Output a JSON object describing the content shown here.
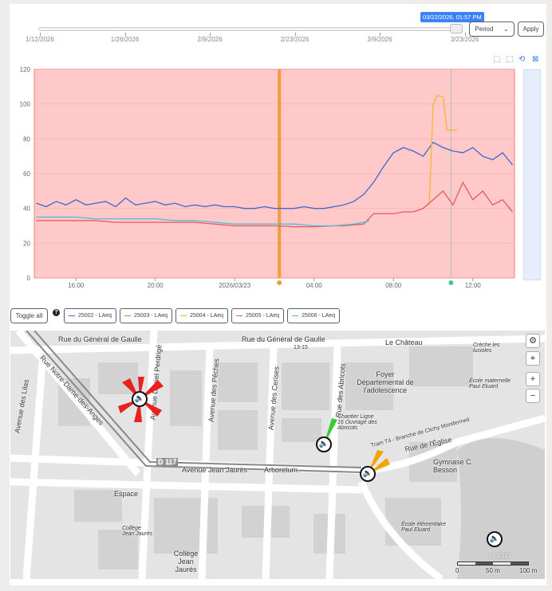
{
  "timeline": {
    "labels": [
      "1/12/2026",
      "1/26/2026",
      "2/9/2026",
      "2/23/2026",
      "3/9/2026",
      "3/23/2026"
    ],
    "tooltip": "03/22/2026, 01:57 PM"
  },
  "controls": {
    "period_label": "Period",
    "apply_label": "Apply",
    "toggle_all_label": "Toggle all",
    "help": "?"
  },
  "toolbar": {
    "icons": [
      "zoom-icon",
      "zoom-reset-icon",
      "restore-icon",
      "save-image-icon"
    ]
  },
  "colors": {
    "background": "#ffc9c9",
    "orange_marker": "#f59a3a",
    "green_marker": "#4cc49a"
  },
  "chart_data": {
    "type": "line",
    "x_unit": "hours since 2026-03-22 00:00",
    "xlim": [
      13.9,
      38.1
    ],
    "ylim": [
      0,
      120
    ],
    "yticks": [
      0,
      20,
      40,
      60,
      80,
      100,
      120
    ],
    "xticks": [
      {
        "x": 16,
        "label": "16:00"
      },
      {
        "x": 20,
        "label": "20:00"
      },
      {
        "x": 24,
        "label": "2026/03/23"
      },
      {
        "x": 28,
        "label": "04:00"
      },
      {
        "x": 32,
        "label": "08:00"
      },
      {
        "x": 36,
        "label": "12:00"
      }
    ],
    "markers": [
      {
        "x": 26.25,
        "color": "#f59a3a"
      },
      {
        "x": 34.9,
        "color": "#4cc49a"
      }
    ],
    "series": [
      {
        "name": "25002 - LAeq",
        "color": "#4466cc",
        "x": [
          14,
          14.5,
          15,
          15.5,
          16,
          16.5,
          17,
          17.5,
          18,
          18.5,
          19,
          19.5,
          20,
          20.5,
          21,
          21.5,
          22,
          22.5,
          23,
          23.5,
          24,
          24.5,
          25,
          25.5,
          26,
          26.5,
          27,
          27.5,
          28,
          28.5,
          29,
          29.5,
          30,
          30.5,
          31,
          31.5,
          32,
          32.5,
          33,
          33.5,
          34,
          34.5,
          35,
          35.5,
          36,
          36.5,
          37,
          37.5,
          38
        ],
        "y": [
          43,
          41,
          44,
          42,
          45,
          42,
          43,
          44,
          41,
          46,
          42,
          43,
          44,
          42,
          43,
          41,
          42,
          41,
          42,
          41,
          41,
          40,
          40,
          41,
          40,
          40,
          40,
          41,
          40,
          40,
          41,
          42,
          44,
          48,
          55,
          64,
          72,
          75,
          73,
          70,
          78,
          75,
          73,
          72,
          75,
          70,
          68,
          72,
          65
        ]
      },
      {
        "name": "25003 - LAeq",
        "color": "#66bb44",
        "x": [],
        "y": []
      },
      {
        "name": "25004 - LAeq",
        "color": "#f5b731",
        "x": [
          33.8,
          34,
          34.2,
          34.5,
          34.7,
          35,
          35.2
        ],
        "y": [
          42,
          100,
          105,
          104,
          85,
          85,
          85
        ]
      },
      {
        "name": "25005 - LAeq",
        "color": "#e85a5a",
        "x": [
          14,
          15,
          16,
          17,
          18,
          19,
          20,
          21,
          22,
          23,
          24,
          25,
          26,
          27,
          28,
          29,
          29.5,
          30,
          30.5,
          31,
          31.5,
          32,
          32.5,
          33,
          33.5,
          34,
          34.5,
          35,
          35.5,
          36,
          36.5,
          37,
          37.5,
          38
        ],
        "y": [
          33,
          33,
          33,
          33,
          32,
          32,
          32,
          32,
          32,
          31,
          30,
          30,
          30,
          29.5,
          29.5,
          30,
          30,
          30.5,
          31,
          37,
          37,
          37,
          38,
          38,
          40,
          45,
          50,
          42,
          55,
          45,
          50,
          42,
          45,
          38
        ]
      },
      {
        "name": "25006 - LAeq",
        "color": "#55bbdd",
        "x": [
          14,
          15,
          16,
          17,
          18,
          19,
          20,
          21,
          22,
          23,
          24,
          25,
          26,
          27,
          28,
          29,
          30,
          30.5,
          30.8
        ],
        "y": [
          35,
          35,
          35,
          34,
          34,
          34,
          34,
          33,
          33,
          32,
          31,
          31,
          31,
          31,
          30,
          30,
          31,
          32,
          33
        ]
      }
    ]
  },
  "map": {
    "streets": [
      "Rue du Général de Gaulle",
      "Rue du Général de Gaulle",
      "Rue Notre-Dame-des-Anges",
      "Avenue des Lilas",
      "Avenue Daniel Perdrigé",
      "Avenue des Pêches",
      "Avenue des Cerises",
      "Rue des Abricots",
      "Avenue Jean Jaurès",
      "Arboretum",
      "Rue de l'Église",
      "D 117",
      "Le Château"
    ],
    "places": [
      "Foyer Départemental de l'adolescence",
      "Chantier Ligne 16 Ouvrage des Abricots",
      "Crèche les lucioles",
      "École maternelle Paul Eluard",
      "Gymnase C. Besson",
      "École élémentaire Paul Eluard",
      "Collège Jean Jaurès",
      "Collège Jean Jaurès",
      "Espace",
      "Tram T4 - Branche de Clichy Montfermeil",
      "13-15"
    ],
    "scale_ratio": "1 : 2,127",
    "scale_labels": [
      "0",
      "50 m",
      "100 m"
    ],
    "controls": [
      "settings-icon",
      "location-icon",
      "+",
      "−"
    ]
  }
}
